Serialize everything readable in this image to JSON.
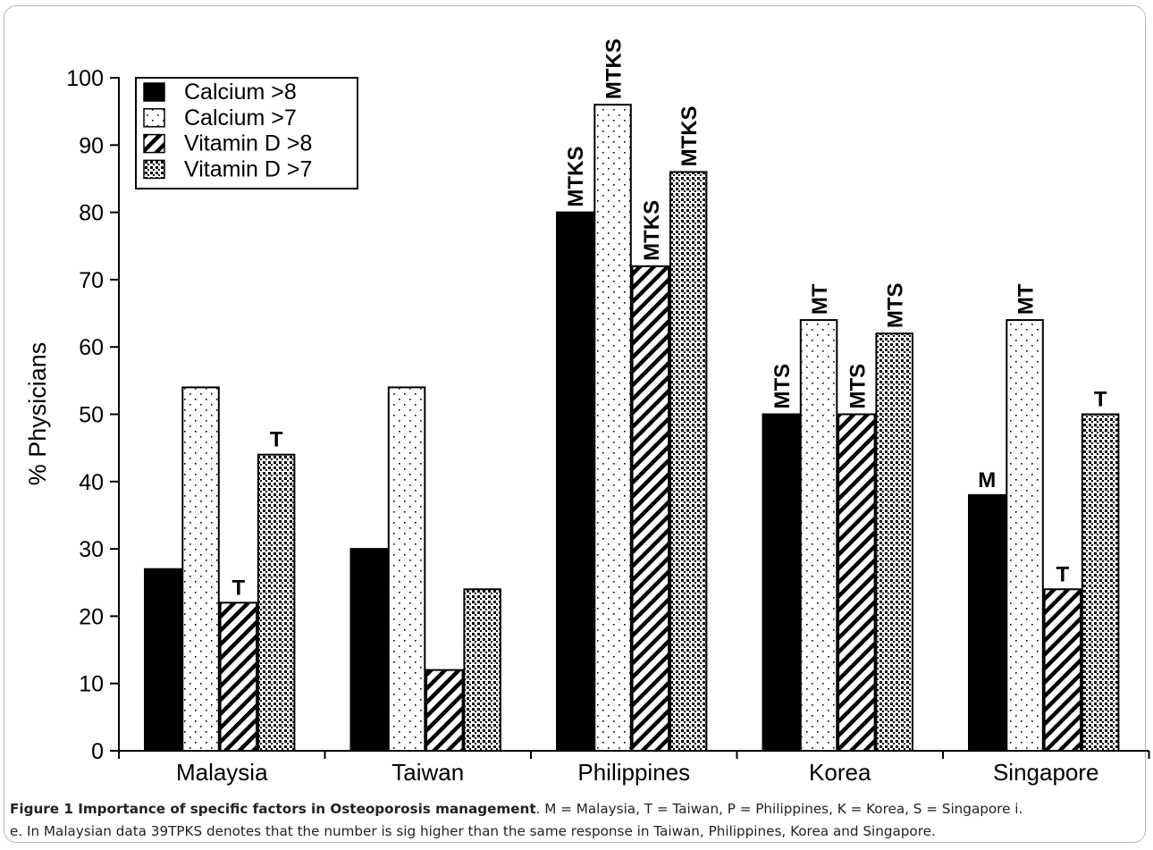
{
  "chart_data": {
    "type": "bar",
    "ylabel": "% Physicians",
    "xlabel": "",
    "ylim": [
      0,
      100
    ],
    "yticks": [
      "0",
      "10",
      "20",
      "30",
      "40",
      "50",
      "60",
      "70",
      "80",
      "90",
      "100"
    ],
    "categories": [
      "Malaysia",
      "Taiwan",
      "Philippines",
      "Korea",
      "Singapore"
    ],
    "legend_position": "top-left",
    "grid": false,
    "series": [
      {
        "name": "Calcium >8",
        "fill": "solid-black",
        "values": [
          27,
          30,
          80,
          50,
          38
        ],
        "labels": [
          "",
          "",
          "MTKS",
          "MTS",
          "M"
        ]
      },
      {
        "name": "Calcium >7",
        "fill": "sparse-dots",
        "values": [
          54,
          54,
          96,
          64,
          64
        ],
        "labels": [
          "",
          "",
          "MTKS",
          "MT",
          "MT"
        ]
      },
      {
        "name": "Vitamin D >8",
        "fill": "diagonal-hatch",
        "values": [
          22,
          12,
          72,
          50,
          24
        ],
        "labels": [
          "T",
          "",
          "MTKS",
          "MTS",
          "T"
        ]
      },
      {
        "name": "Vitamin D >7",
        "fill": "dense-checker",
        "values": [
          44,
          24,
          86,
          62,
          50
        ],
        "labels": [
          "T",
          "",
          "MTKS",
          "MTS",
          "T"
        ]
      }
    ]
  },
  "caption": {
    "title": "Figure 1 Importance of specific factors in Osteoporosis management",
    "line1": ". M = Malaysia, T = Taiwan, P = Philippines, K = Korea, S = Singapore i.",
    "line2": "e. In Malaysian data 39TPKS denotes that the number is sig higher than the same response in Taiwan, Philippines, Korea and Singapore."
  }
}
